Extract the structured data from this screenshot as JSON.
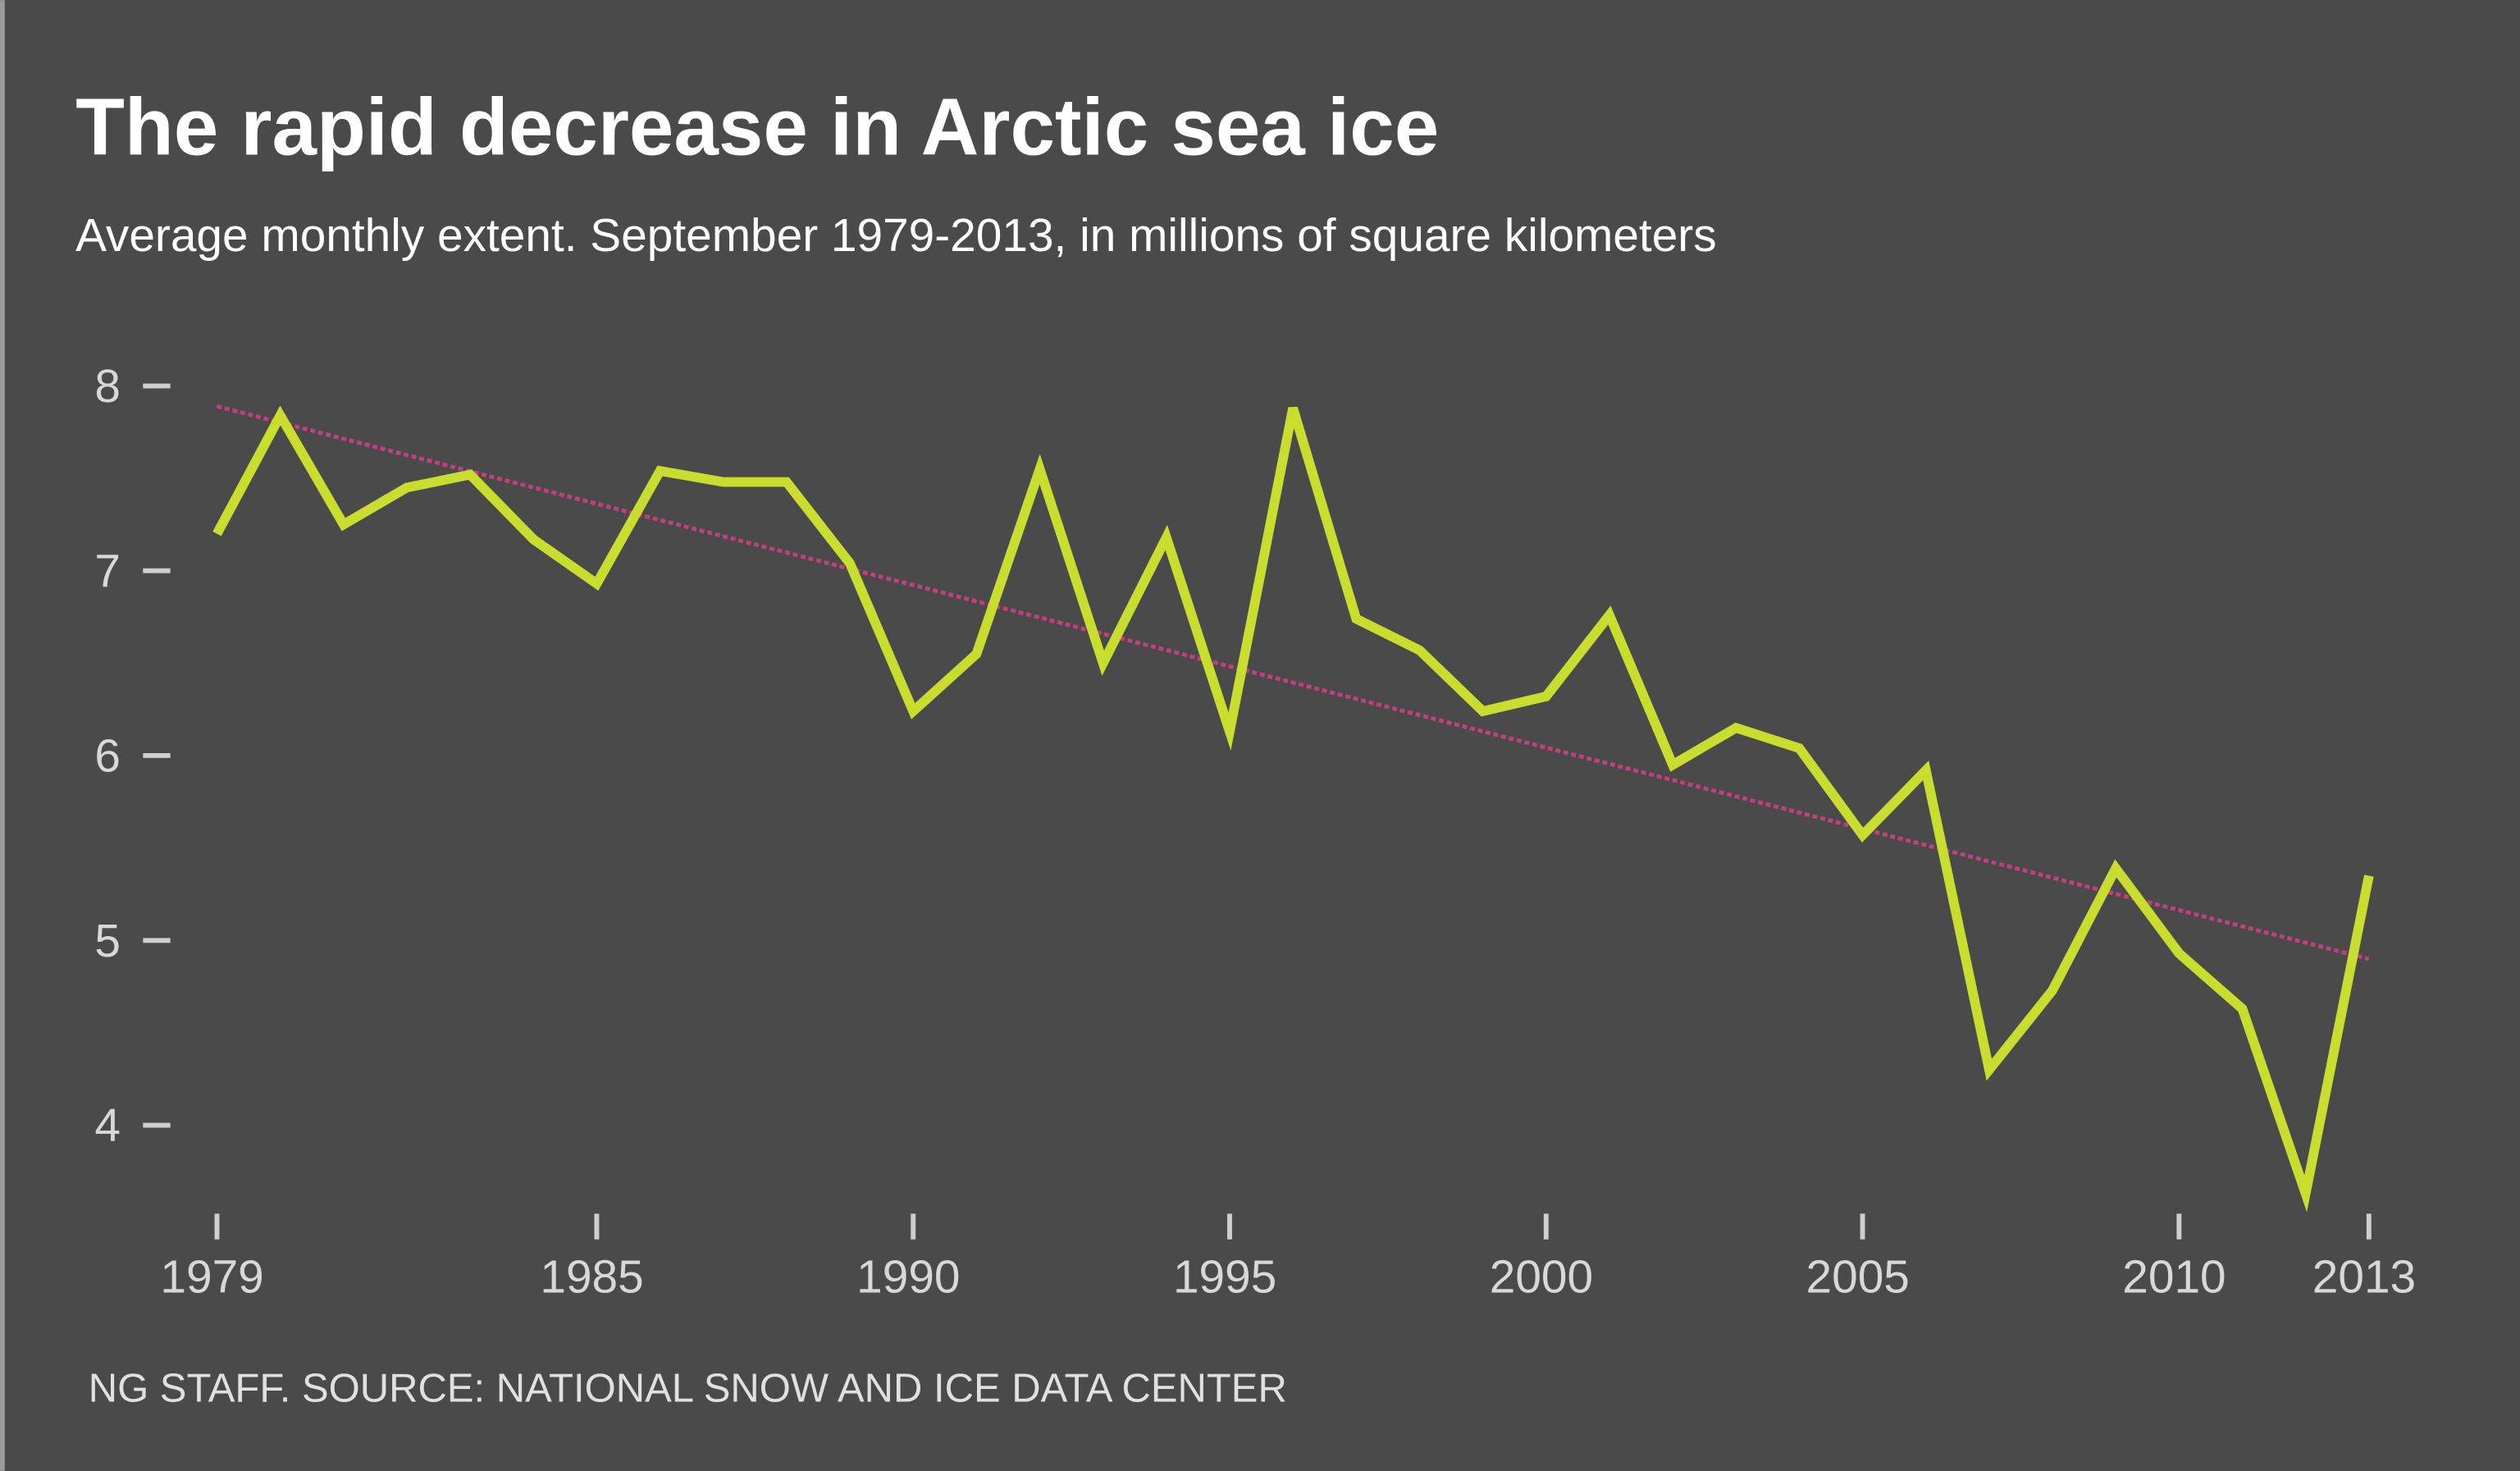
{
  "chart_data": {
    "type": "line",
    "title": "The rapid decrease in Arctic sea ice",
    "subtitle": "Average monthly extent. September 1979-2013, in millions of square kilometers",
    "source": "NG STAFF. SOURCE: NATIONAL SNOW AND ICE DATA CENTER",
    "xlabel": "",
    "ylabel": "",
    "xlim": [
      1979,
      2013
    ],
    "ylim": [
      3.5,
      8
    ],
    "x_ticks": [
      "1979",
      "1985",
      "1990",
      "1995",
      "2000",
      "2005",
      "2010",
      "2013"
    ],
    "y_ticks": [
      "8",
      "7",
      "6",
      "5",
      "4"
    ],
    "grid": false,
    "x": [
      1979,
      1980,
      1981,
      1982,
      1983,
      1984,
      1985,
      1986,
      1987,
      1988,
      1989,
      1990,
      1991,
      1992,
      1993,
      1994,
      1995,
      1996,
      1997,
      1998,
      1999,
      2000,
      2001,
      2002,
      2003,
      2004,
      2005,
      2006,
      2007,
      2008,
      2009,
      2010,
      2011,
      2012,
      2013
    ],
    "series": [
      {
        "values": [
          7.2,
          7.84,
          7.25,
          7.45,
          7.52,
          7.17,
          6.93,
          7.54,
          7.48,
          7.48,
          7.04,
          6.24,
          6.55,
          7.55,
          6.5,
          7.18,
          6.13,
          7.88,
          6.74,
          6.57,
          6.24,
          6.32,
          6.76,
          5.95,
          6.15,
          6.04,
          5.57,
          5.92,
          4.3,
          4.73,
          5.39,
          4.93,
          4.63,
          3.63,
          5.35
        ],
        "color": "#c9dd2f"
      }
    ],
    "trendline": {
      "x": [
        1979,
        2013
      ],
      "values": [
        7.89,
        4.9
      ],
      "color": "#c2407e",
      "style": "dotted"
    },
    "colors": {
      "background": "#4a4a4a",
      "text": "#ffffff"
    }
  }
}
